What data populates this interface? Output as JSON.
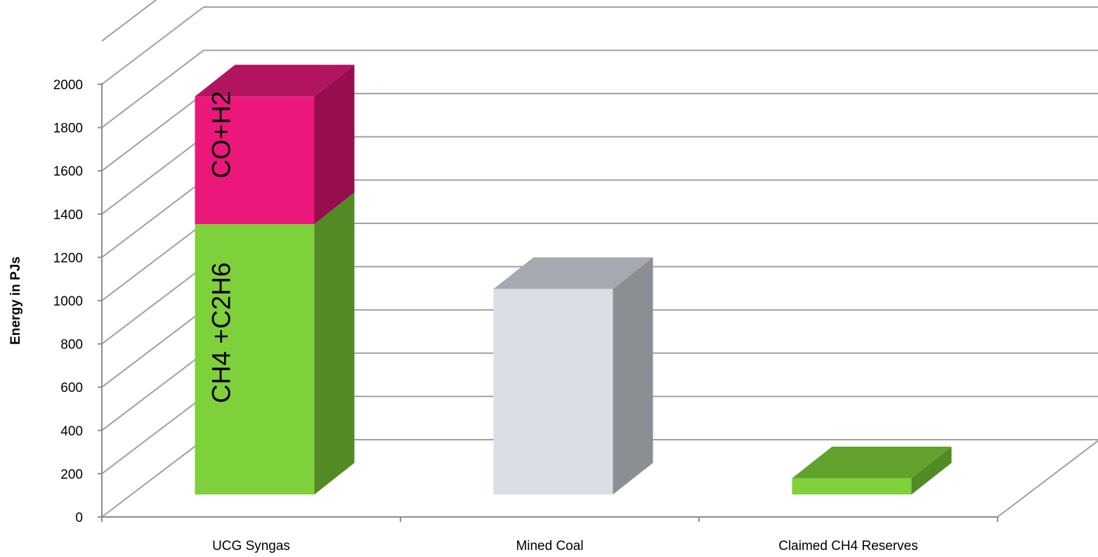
{
  "chart_data": {
    "type": "bar",
    "stacked": true,
    "three_d": true,
    "categories": [
      "UCG Syngas",
      "Mined Coal",
      "Claimed CH4 Reserves"
    ],
    "stacks": [
      [
        {
          "value": 1250,
          "label": "CH4 +C2H6",
          "colors": {
            "front": "#7FD13B",
            "side": "#528A24",
            "top": "#61A22D"
          }
        },
        {
          "value": 590,
          "label": "CO+H2",
          "colors": {
            "front": "#EC177B",
            "side": "#960E4E",
            "top": "#B21460"
          }
        }
      ],
      [
        {
          "value": 950,
          "label": "",
          "colors": {
            "front": "#D9DEE6",
            "side": "#8B8E93",
            "top": "#A6A9AF"
          }
        }
      ],
      [
        {
          "value": 75,
          "label": "",
          "colors": {
            "front": "#7FD13B",
            "side": "#528A24",
            "top": "#61A22D"
          }
        }
      ]
    ],
    "yticks": [
      0,
      200,
      400,
      600,
      800,
      1000,
      1200,
      1400,
      1600,
      1800,
      2000
    ],
    "ylim": [
      0,
      2000
    ],
    "ylabel": "Energy in PJs",
    "xlabel": "",
    "title": "",
    "grid": true,
    "legend": "none",
    "gridline_color": "#A0A0A0",
    "axis_color": "#8C8C8C"
  }
}
